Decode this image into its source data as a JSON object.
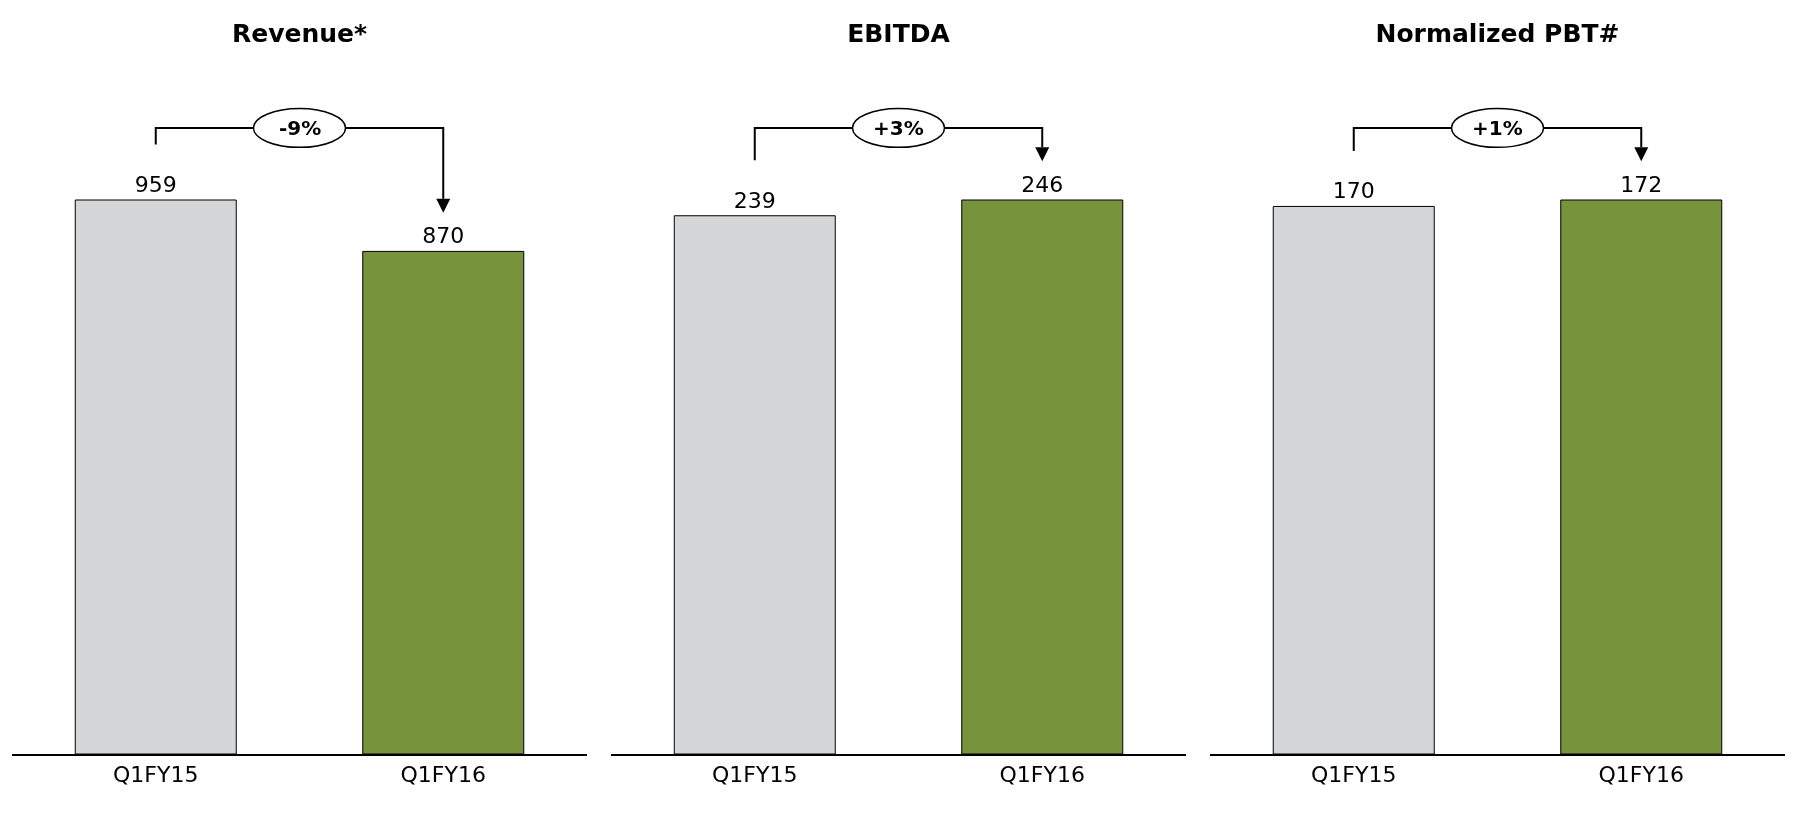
{
  "chart_data": [
    {
      "type": "bar",
      "title": "Revenue*",
      "categories": [
        "Q1FY15",
        "Q1FY16"
      ],
      "values": [
        959,
        870
      ],
      "colors": [
        "#d5d6d8",
        "#77933c"
      ],
      "data_labels": true,
      "grid": false,
      "legend": false,
      "annotations": [
        "-9%"
      ]
    },
    {
      "type": "bar",
      "title": "EBITDA",
      "categories": [
        "Q1FY15",
        "Q1FY16"
      ],
      "values": [
        239,
        246
      ],
      "colors": [
        "#d5d6d8",
        "#77933c"
      ],
      "data_labels": true,
      "grid": false,
      "legend": false,
      "annotations": [
        "+3%"
      ]
    },
    {
      "type": "bar",
      "title": "Normalized PBT#",
      "categories": [
        "Q1FY15",
        "Q1FY16"
      ],
      "values": [
        170,
        172
      ],
      "colors": [
        "#d5d6d8",
        "#77933c"
      ],
      "data_labels": true,
      "grid": false,
      "legend": false,
      "annotations": [
        "+1%"
      ]
    }
  ]
}
